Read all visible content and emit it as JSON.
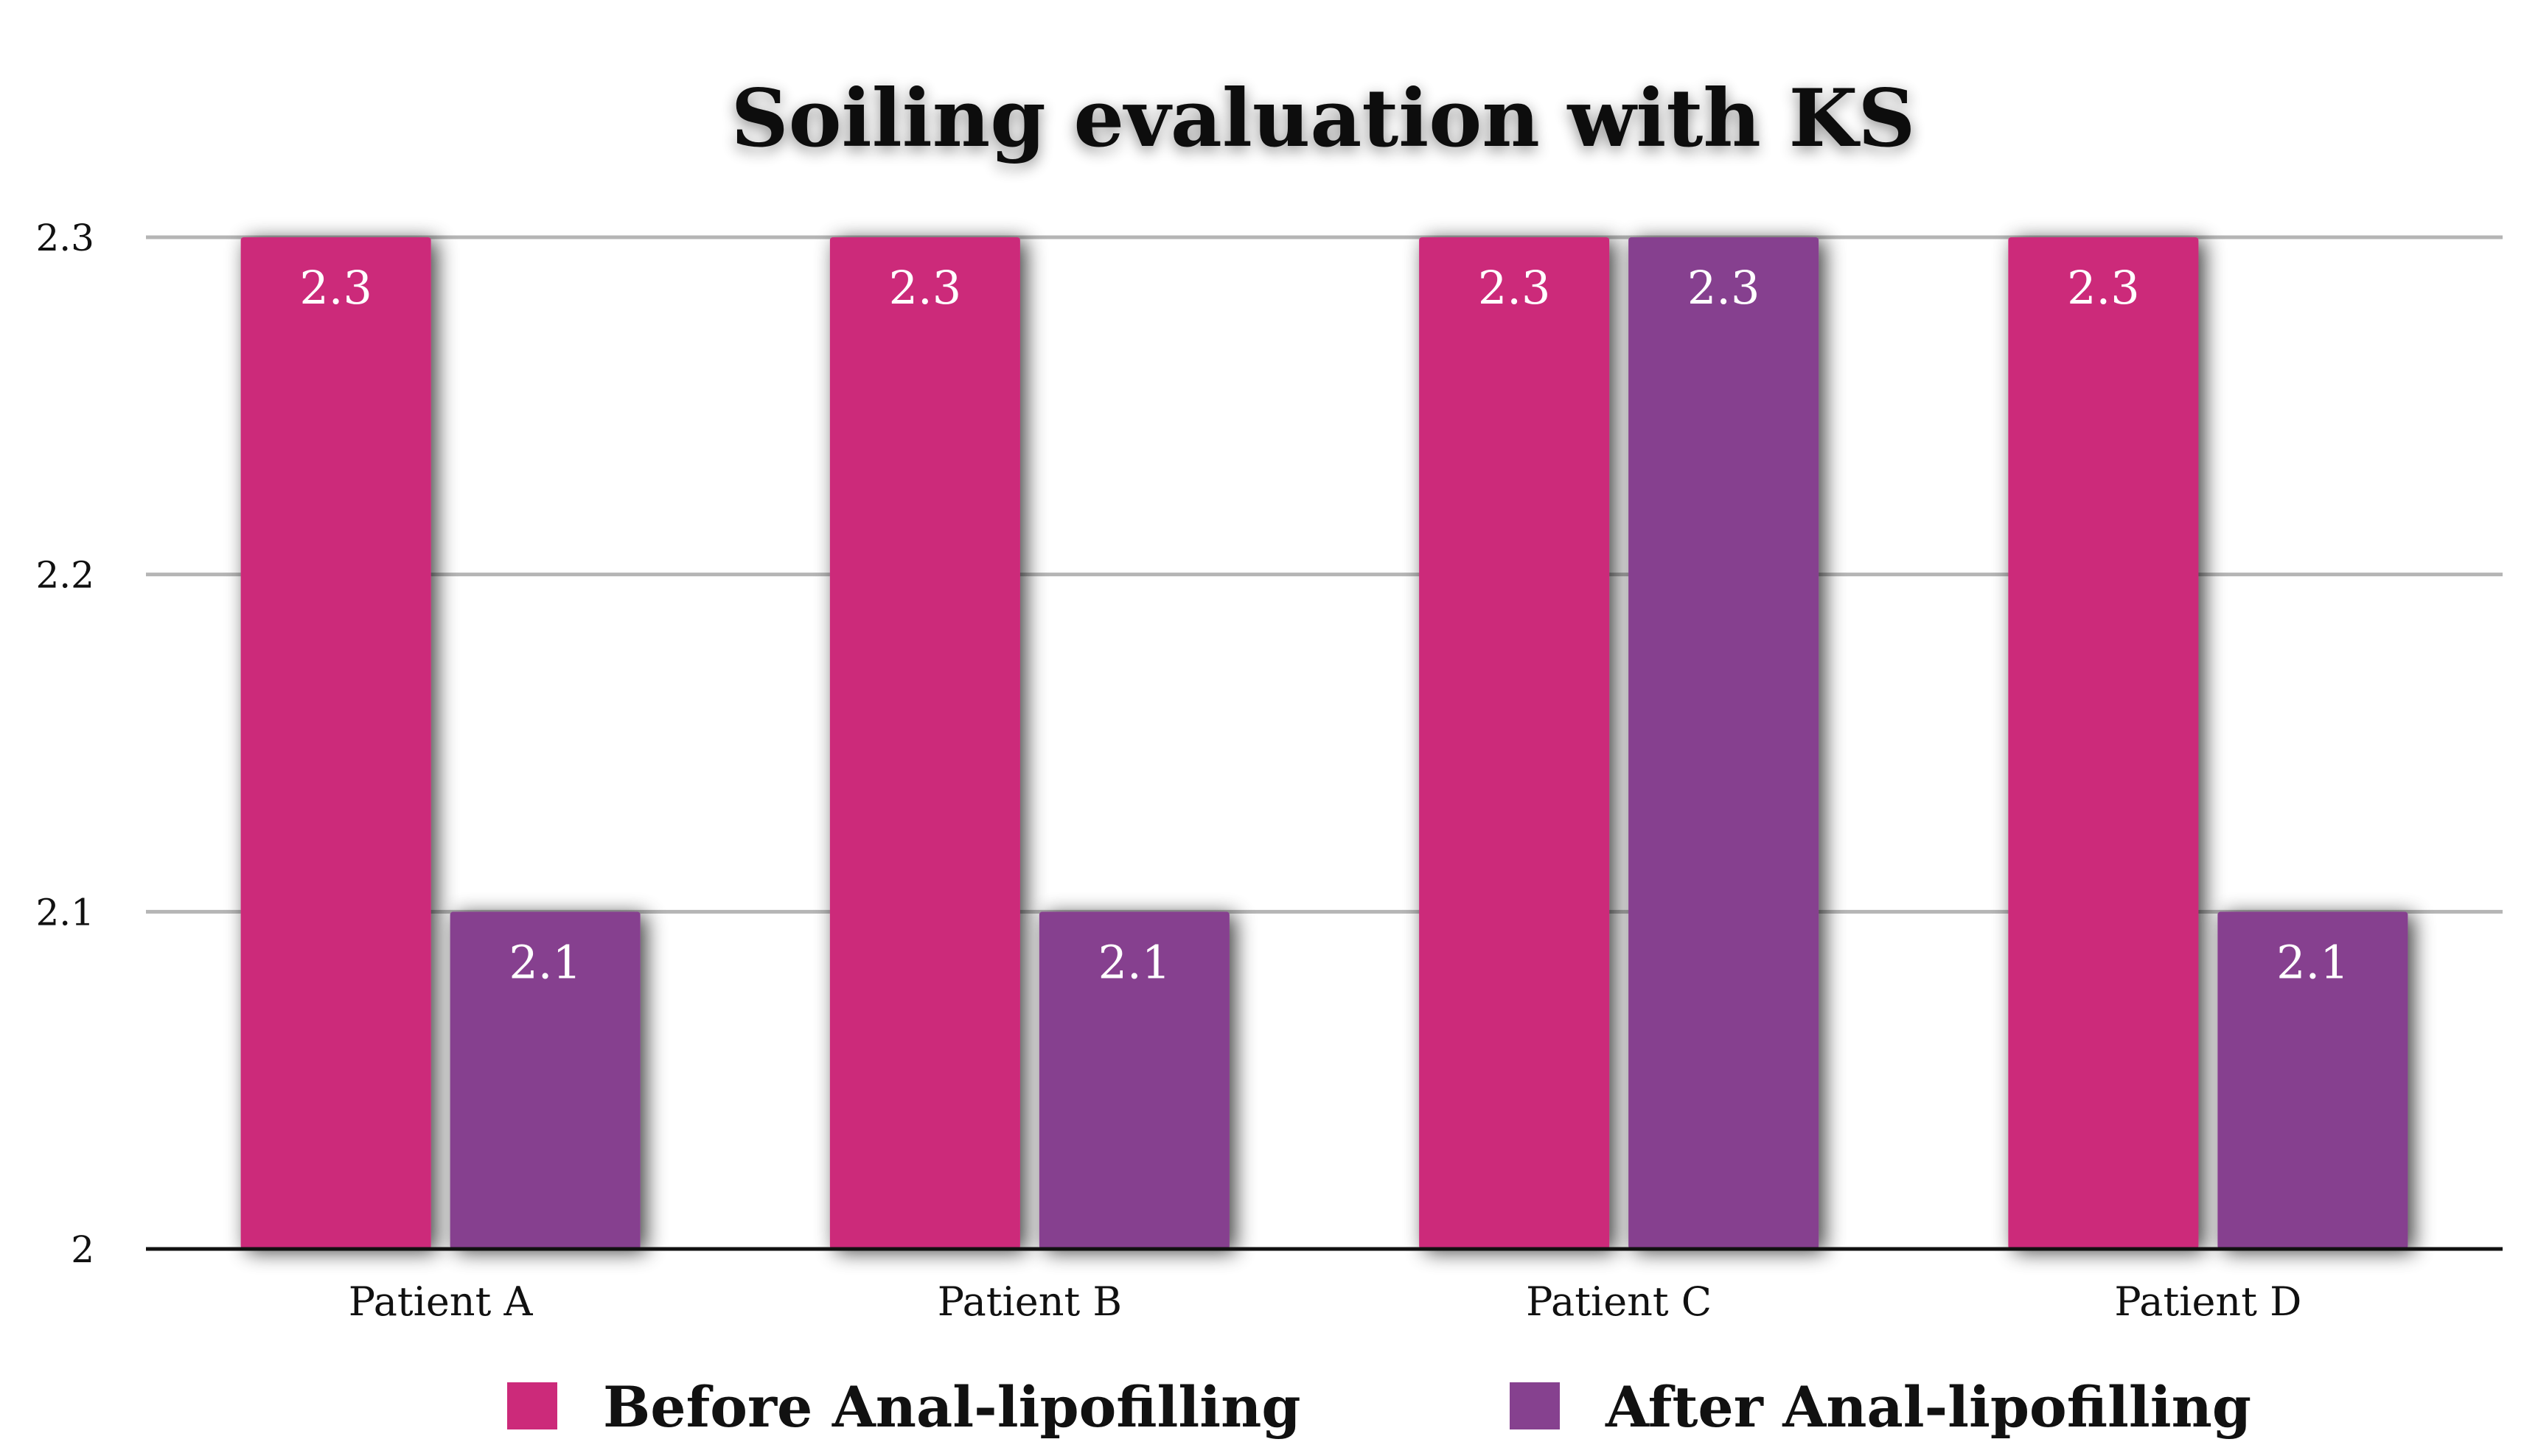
{
  "chart_data": {
    "type": "bar",
    "title": "Soiling evaluation with KS",
    "xlabel": "",
    "ylabel": "",
    "categories": [
      "Patient A",
      "Patient B",
      "Patient C",
      "Patient D"
    ],
    "series": [
      {
        "name": "Before Anal-lipofilling",
        "color": "#cc2a7a",
        "values": [
          2.3,
          2.3,
          2.3,
          2.3
        ]
      },
      {
        "name": "After Anal-lipofilling",
        "color": "#86418f",
        "values": [
          2.1,
          2.1,
          2.3,
          2.1
        ]
      }
    ],
    "ylim": [
      2,
      2.3
    ],
    "yticks": [
      "2",
      "2.1",
      "2.2",
      "2.3"
    ],
    "grid": true,
    "legend_position": "bottom",
    "data_labels": true
  }
}
